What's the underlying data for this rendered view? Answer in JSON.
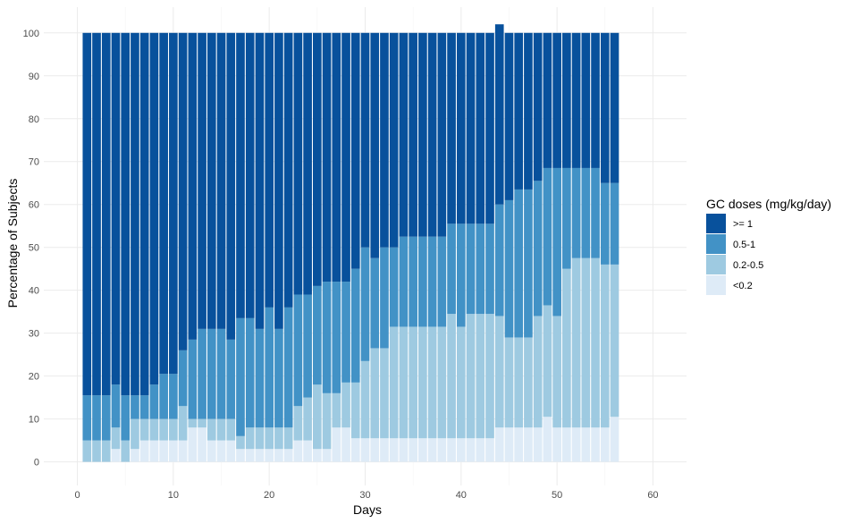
{
  "chart_data": {
    "type": "bar",
    "stacked": true,
    "xlabel": "Days",
    "ylabel": "Percentage of Subjects",
    "xlim": [
      -3.5,
      63.5
    ],
    "ylim": [
      -5.5,
      106
    ],
    "x_ticks": [
      0,
      10,
      20,
      30,
      40,
      50,
      60
    ],
    "y_ticks": [
      0,
      10,
      20,
      30,
      40,
      50,
      60,
      70,
      80,
      90,
      100
    ],
    "grid": true,
    "legend": {
      "title": "GC doses (mg/kg/day)",
      "position": "right",
      "entries": [
        ">= 1",
        "0.5-1",
        "0.2-0.5",
        "<0.2"
      ]
    },
    "x": [
      1,
      2,
      3,
      4,
      5,
      6,
      7,
      8,
      9,
      10,
      11,
      12,
      13,
      14,
      15,
      16,
      17,
      18,
      19,
      20,
      21,
      22,
      23,
      24,
      25,
      26,
      27,
      28,
      29,
      30,
      31,
      32,
      33,
      34,
      35,
      36,
      37,
      38,
      39,
      40,
      41,
      42,
      43,
      44,
      45,
      46,
      47,
      48,
      49,
      50,
      51,
      52,
      53,
      54,
      55,
      56
    ],
    "series": [
      {
        "name": "<0.2",
        "color": "#deebf7",
        "values": [
          0,
          0,
          0,
          3,
          0,
          3,
          5,
          5,
          5,
          5,
          5,
          8,
          8,
          5,
          5,
          5,
          3,
          3,
          3,
          3,
          3,
          3,
          5,
          5,
          3,
          3,
          8,
          8,
          5.5,
          5.5,
          5.5,
          5.5,
          5.5,
          5.5,
          5.5,
          5.5,
          5.5,
          5.5,
          5.5,
          5.5,
          5.5,
          5.5,
          5.5,
          8,
          8,
          8,
          8,
          8,
          10.5,
          8,
          8,
          8,
          8,
          8,
          8,
          10.5
        ]
      },
      {
        "name": "0.2-0.5",
        "color": "#9ecae1",
        "values": [
          5,
          5,
          5,
          5,
          5,
          7,
          5,
          5,
          5,
          5,
          8,
          2,
          2,
          5,
          5,
          5,
          3,
          5,
          5,
          5,
          5,
          5,
          8,
          10,
          15,
          13,
          8,
          10.5,
          13,
          18,
          21,
          21,
          26,
          26,
          26,
          26,
          26,
          26,
          29,
          26,
          29,
          29,
          29,
          26,
          21,
          21,
          21,
          26,
          26,
          26,
          37,
          39.5,
          39.5,
          39.5,
          38,
          35.5
        ]
      },
      {
        "name": "0.5-1",
        "color": "#4292c6",
        "values": [
          10.5,
          10.5,
          10.5,
          10,
          10.5,
          5.5,
          5.5,
          8,
          10.5,
          10.5,
          13,
          18.5,
          21,
          21,
          21,
          18.5,
          27.5,
          25.5,
          23,
          28,
          23,
          28,
          26,
          24,
          23,
          26,
          26,
          23.5,
          26.5,
          26.5,
          21,
          23.5,
          18.5,
          21,
          21,
          21,
          21,
          21,
          21,
          24,
          21,
          21,
          21,
          26,
          32,
          34.5,
          34.5,
          31.5,
          32,
          34.5,
          23.5,
          21,
          21,
          21,
          19,
          19
        ]
      },
      {
        "name": ">= 1",
        "color": "#08519c",
        "values": [
          84.5,
          84.5,
          84.5,
          82,
          84.5,
          84.5,
          84.5,
          82,
          79.5,
          79.5,
          74,
          71.5,
          69,
          69,
          69,
          71.5,
          66.5,
          66.5,
          69,
          64,
          69,
          64,
          61,
          61,
          59,
          58,
          58,
          58,
          55,
          50,
          52.5,
          50,
          50,
          47.5,
          47.5,
          47.5,
          47.5,
          47.5,
          44.5,
          44.5,
          44.5,
          44.5,
          44.5,
          42,
          39,
          36.5,
          36.5,
          34.5,
          31.5,
          31.5,
          31.5,
          31.5,
          31.5,
          31.5,
          35,
          35
        ]
      }
    ]
  }
}
